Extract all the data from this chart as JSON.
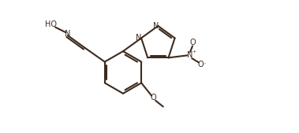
{
  "bg_color": "#ffffff",
  "line_color": "#3d2b1f",
  "line_width": 1.5,
  "font_size": 7.0,
  "fig_width": 3.79,
  "fig_height": 1.69,
  "dpi": 100,
  "xlim": [
    0,
    10
  ],
  "ylim": [
    0,
    4.5
  ]
}
